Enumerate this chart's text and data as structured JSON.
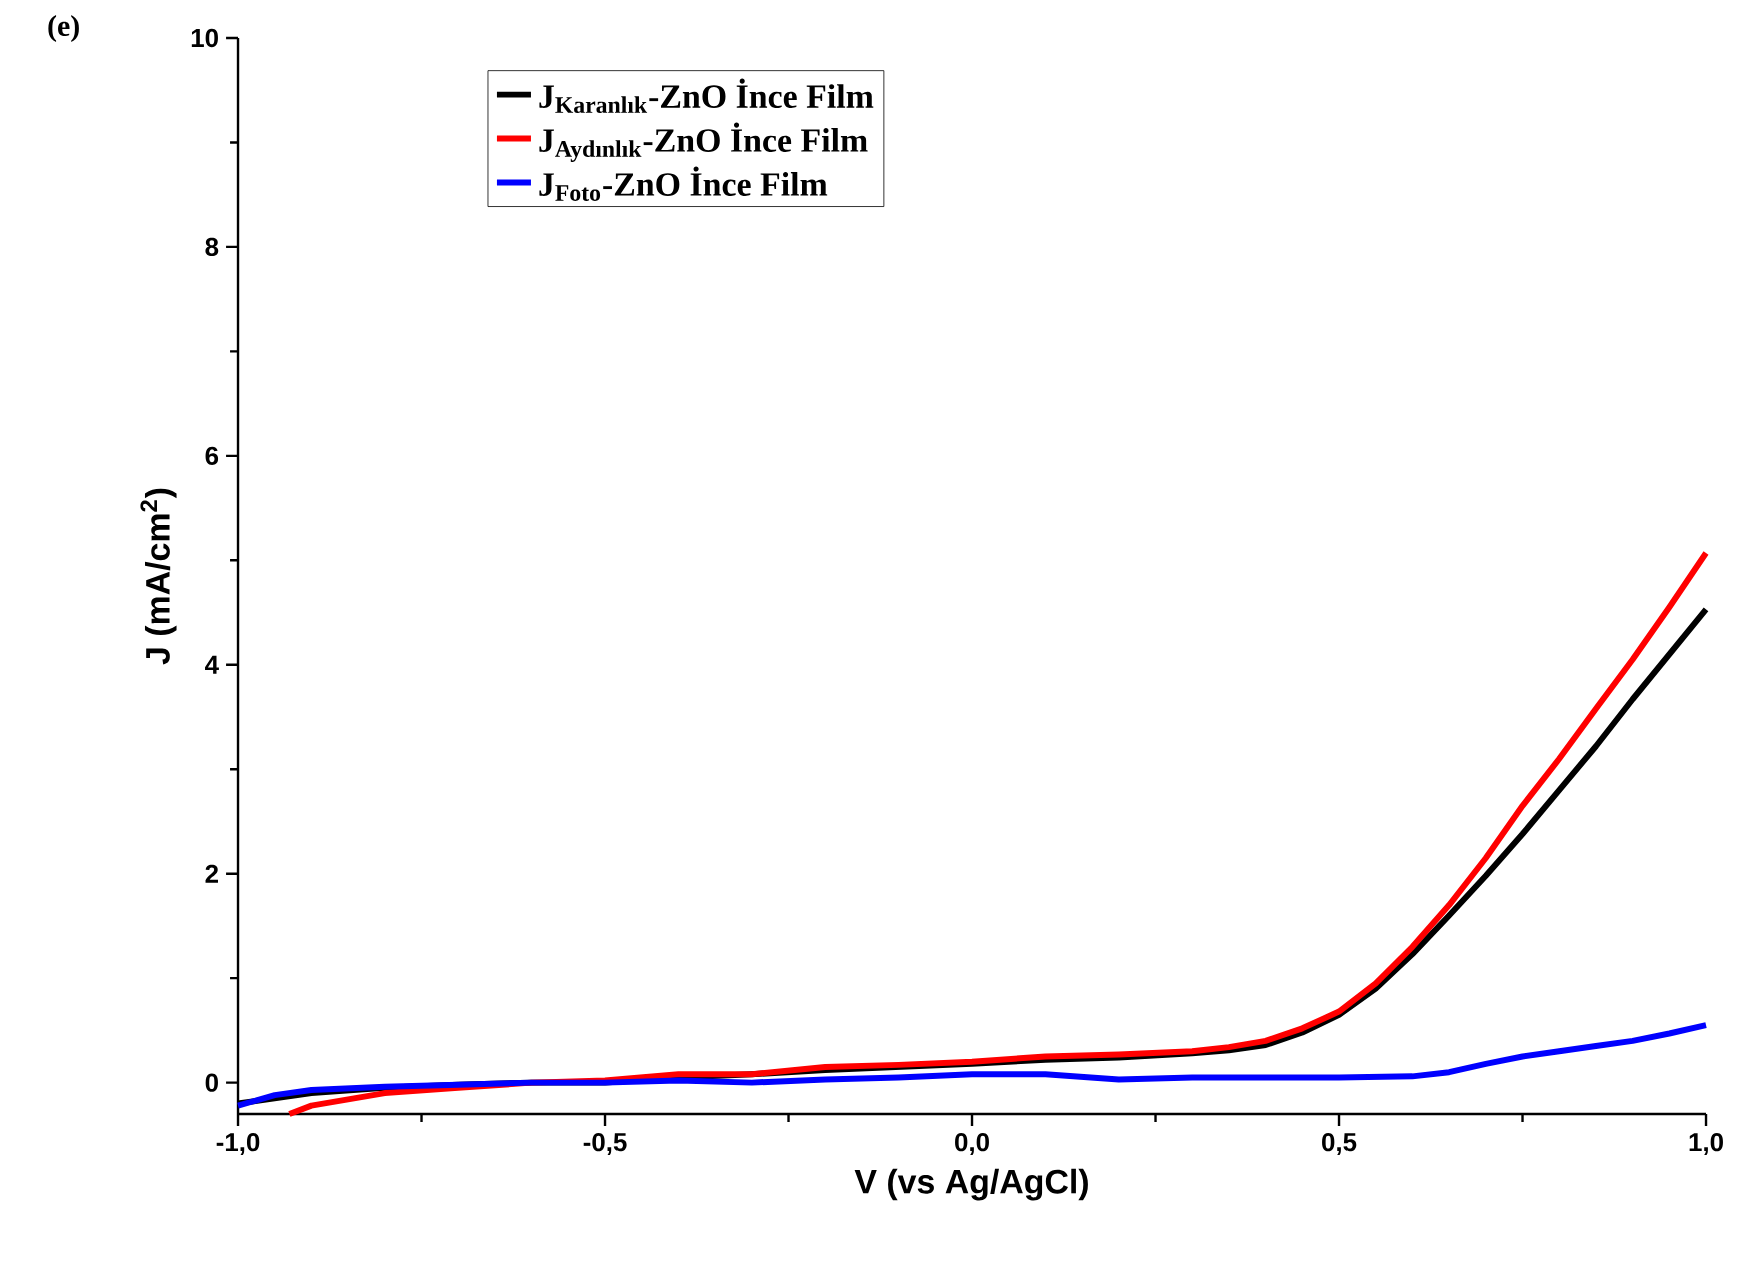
{
  "chart_data": {
    "type": "line",
    "xlabel": "V (vs Ag/AgCl)",
    "ylabel": "J (mA/cm$^{2}$)",
    "annotations": [
      "(e)"
    ],
    "xlim": [
      -1.0,
      1.0
    ],
    "ylim": [
      -0.3,
      10
    ],
    "xticks": [
      {
        "value": -1.0,
        "label": "-1,0"
      },
      {
        "value": -0.5,
        "label": "-0,5"
      },
      {
        "value": 0.0,
        "label": "0,0"
      },
      {
        "value": 0.5,
        "label": "0,5"
      },
      {
        "value": 1.0,
        "label": "1,0"
      }
    ],
    "yticks": [
      0,
      2,
      4,
      6,
      8,
      10
    ],
    "legend": "top left",
    "grid": false,
    "marker": "none",
    "line_style": "solid",
    "series": [
      {
        "name": "J$_{Karanlık}$-ZnO İnce Film",
        "color": "#000000",
        "x": [
          -1.0,
          -0.9,
          -0.8,
          -0.7,
          -0.6,
          -0.5,
          -0.4,
          -0.3,
          -0.2,
          -0.1,
          0.0,
          0.1,
          0.2,
          0.3,
          0.35,
          0.4,
          0.45,
          0.5,
          0.55,
          0.6,
          0.65,
          0.7,
          0.75,
          0.8,
          0.85,
          0.9,
          0.95,
          1.0
        ],
        "values": [
          -0.2,
          -0.1,
          -0.05,
          -0.02,
          0.0,
          0.0,
          0.05,
          0.08,
          0.12,
          0.15,
          0.18,
          0.22,
          0.24,
          0.28,
          0.31,
          0.36,
          0.48,
          0.65,
          0.9,
          1.23,
          1.6,
          1.98,
          2.38,
          2.8,
          3.22,
          3.67,
          4.1,
          4.53
        ]
      },
      {
        "name": "J$_{Aydınlık}$-ZnO İnce Film",
        "color": "#ff0000",
        "x": [
          -0.93,
          -0.9,
          -0.8,
          -0.7,
          -0.6,
          -0.5,
          -0.4,
          -0.3,
          -0.2,
          -0.1,
          0.0,
          0.1,
          0.2,
          0.3,
          0.35,
          0.4,
          0.45,
          0.5,
          0.55,
          0.6,
          0.65,
          0.7,
          0.75,
          0.8,
          0.85,
          0.9,
          0.95,
          1.0
        ],
        "values": [
          -0.3,
          -0.22,
          -0.1,
          -0.05,
          0.0,
          0.02,
          0.08,
          0.08,
          0.15,
          0.17,
          0.2,
          0.25,
          0.27,
          0.3,
          0.34,
          0.4,
          0.52,
          0.68,
          0.95,
          1.3,
          1.7,
          2.15,
          2.65,
          3.1,
          3.58,
          4.05,
          4.55,
          5.07
        ]
      },
      {
        "name": "J$_{Foto}$-ZnO İnce Film",
        "color": "#0000ff",
        "x": [
          -1.0,
          -0.95,
          -0.9,
          -0.8,
          -0.7,
          -0.6,
          -0.5,
          -0.4,
          -0.3,
          -0.2,
          -0.1,
          0.0,
          0.1,
          0.2,
          0.3,
          0.4,
          0.5,
          0.6,
          0.65,
          0.7,
          0.75,
          0.8,
          0.85,
          0.9,
          0.95,
          1.0
        ],
        "values": [
          -0.22,
          -0.12,
          -0.07,
          -0.04,
          -0.02,
          0.0,
          0.0,
          0.02,
          0.0,
          0.03,
          0.05,
          0.08,
          0.08,
          0.03,
          0.05,
          0.05,
          0.05,
          0.06,
          0.1,
          0.18,
          0.25,
          0.3,
          0.35,
          0.4,
          0.47,
          0.55
        ]
      }
    ]
  }
}
